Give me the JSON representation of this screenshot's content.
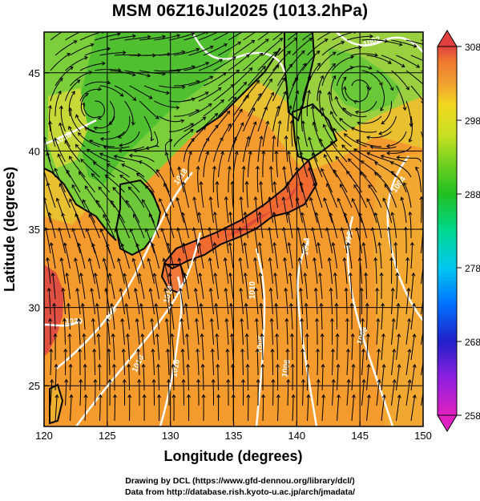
{
  "title": "MSM 06Z16Jul2025 (1013.2hPa)",
  "axes": {
    "x_label": "Longitude (degrees)",
    "y_label": "Latitude (degrees)",
    "x_ticks": [
      "120",
      "125",
      "130",
      "135",
      "140",
      "145",
      "150"
    ],
    "y_ticks": [
      "25",
      "30",
      "35",
      "40",
      "45"
    ],
    "x_range": [
      120,
      150
    ],
    "y_range": [
      22.4,
      47.6
    ]
  },
  "colorbar": {
    "ticks": [
      "308",
      "298",
      "288",
      "278",
      "268",
      "258"
    ],
    "range": [
      258,
      308
    ],
    "colors": [
      "#e020c0",
      "#9020e0",
      "#2020c8",
      "#0070ff",
      "#00c8f0",
      "#00d890",
      "#20c020",
      "#70d020",
      "#c8e020",
      "#f0d820",
      "#f0a030",
      "#f07830",
      "#e04040"
    ]
  },
  "contour_labels": [
    "1018",
    "1020",
    "1018",
    "1012",
    "1010",
    "1014",
    "1016",
    "1010",
    "1008",
    "1014",
    "1006",
    "1012",
    "1008",
    "1004",
    "1002"
  ],
  "credits": {
    "line1": "Drawing by DCL (https://www.gfd-dennou.org/library/dcl/)",
    "line2": "Data from http://database.rish.kyoto-u.ac.jp/arch/jmadata/"
  }
}
